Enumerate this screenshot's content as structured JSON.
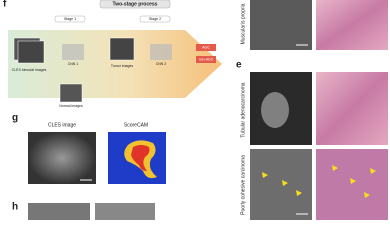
{
  "panel_f": {
    "label": "f",
    "title": "Two-stage process",
    "stage1": "Stage 1",
    "stage2": "Stage 2",
    "input": "CLES bimodal images",
    "cnn1": "CNN 1",
    "tumor": "Tumor images",
    "cnn2": "CNN 2",
    "normal": "Normal images",
    "outputs": [
      "AGC",
      "non-AGC"
    ]
  },
  "panel_g": {
    "label": "g",
    "left": "CLES image",
    "right": "ScoreCAM"
  },
  "panel_h": {
    "label": "h"
  },
  "panel_e": {
    "label": "e",
    "rows": [
      "Muscularis propria",
      "Tubular adenocarcinoma",
      "Poorly cohesive carcinoma"
    ]
  }
}
